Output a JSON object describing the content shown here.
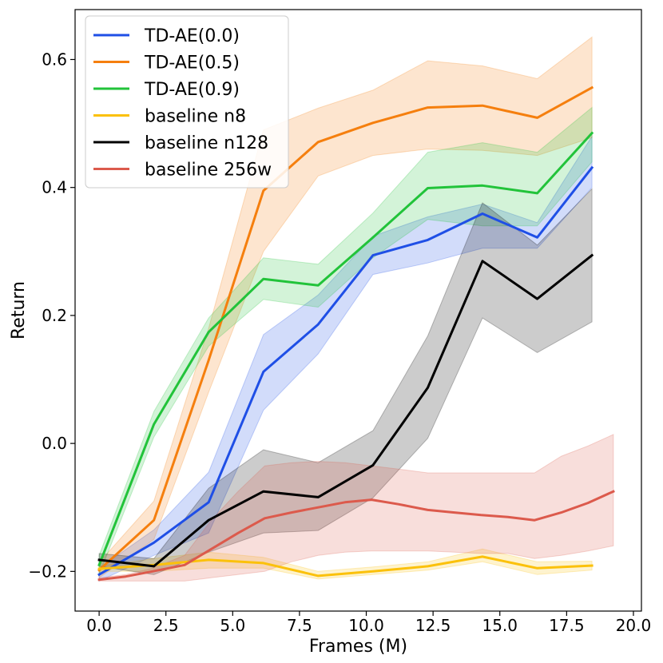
{
  "chart_data": {
    "type": "line",
    "title": "",
    "xlabel": "Frames (M)",
    "ylabel": "Return",
    "xlim": [
      -0.9,
      20.3
    ],
    "ylim": [
      -0.262,
      0.678
    ],
    "xticks": [
      0.0,
      2.5,
      5.0,
      7.5,
      10.0,
      12.5,
      15.0,
      17.5,
      20.0
    ],
    "xtick_labels": [
      "0.0",
      "2.5",
      "5.0",
      "7.5",
      "10.0",
      "12.5",
      "15.0",
      "17.5",
      "20.0"
    ],
    "yticks": [
      -0.2,
      0.0,
      0.2,
      0.4,
      0.6
    ],
    "ytick_labels": [
      "−0.2",
      "0.0",
      "0.2",
      "0.4",
      "0.6"
    ],
    "grid": false,
    "legend_position": "top-left",
    "series": [
      {
        "name": "TD-AE(0.0)",
        "color": "#1f4fe6",
        "x": [
          0.0,
          2.05,
          4.1,
          6.15,
          8.2,
          10.25,
          12.3,
          14.35,
          16.4,
          18.45
        ],
        "y": [
          -0.205,
          -0.155,
          -0.092,
          0.112,
          0.186,
          0.294,
          0.318,
          0.359,
          0.322,
          0.431
        ],
        "lower": [
          -0.215,
          -0.175,
          -0.14,
          0.052,
          0.14,
          0.264,
          0.282,
          0.305,
          0.305,
          0.4
        ],
        "upper": [
          -0.195,
          -0.135,
          -0.045,
          0.17,
          0.232,
          0.324,
          0.354,
          0.374,
          0.345,
          0.48
        ]
      },
      {
        "name": "TD-AE(0.5)",
        "color": "#f57f0e",
        "x": [
          0.0,
          2.05,
          4.1,
          6.15,
          8.2,
          10.25,
          12.3,
          14.35,
          16.4,
          18.45
        ],
        "y": [
          -0.198,
          -0.12,
          0.13,
          0.395,
          0.471,
          0.501,
          0.525,
          0.528,
          0.509,
          0.556
        ],
        "lower": [
          -0.21,
          -0.15,
          0.08,
          0.3,
          0.418,
          0.45,
          0.46,
          0.458,
          0.45,
          0.478
        ],
        "upper": [
          -0.186,
          -0.09,
          0.18,
          0.49,
          0.524,
          0.552,
          0.598,
          0.59,
          0.57,
          0.635
        ]
      },
      {
        "name": "TD-AE(0.9)",
        "color": "#22c33a",
        "x": [
          0.0,
          2.05,
          4.1,
          6.15,
          8.2,
          10.25,
          12.3,
          14.35,
          16.4,
          18.45
        ],
        "y": [
          -0.19,
          0.03,
          0.174,
          0.257,
          0.247,
          0.322,
          0.399,
          0.403,
          0.391,
          0.485
        ],
        "lower": [
          -0.205,
          0.01,
          0.152,
          0.225,
          0.213,
          0.29,
          0.35,
          0.34,
          0.34,
          0.44
        ],
        "upper": [
          -0.175,
          0.05,
          0.196,
          0.29,
          0.28,
          0.36,
          0.455,
          0.47,
          0.455,
          0.525
        ]
      },
      {
        "name": "baseline n8",
        "color": "#fbc10b",
        "x": [
          0.0,
          2.05,
          4.1,
          6.15,
          8.2,
          10.25,
          12.3,
          14.35,
          16.4,
          18.45
        ],
        "y": [
          -0.196,
          -0.19,
          -0.182,
          -0.187,
          -0.207,
          -0.2,
          -0.192,
          -0.177,
          -0.195,
          -0.191
        ],
        "lower": [
          -0.2,
          -0.2,
          -0.195,
          -0.195,
          -0.212,
          -0.205,
          -0.198,
          -0.185,
          -0.205,
          -0.198
        ],
        "upper": [
          -0.192,
          -0.18,
          -0.17,
          -0.178,
          -0.2,
          -0.193,
          -0.185,
          -0.165,
          -0.185,
          -0.184
        ]
      },
      {
        "name": "baseline n128",
        "color": "#000000",
        "x": [
          0.0,
          2.05,
          4.1,
          6.15,
          8.2,
          10.25,
          12.3,
          14.35,
          16.4,
          18.45
        ],
        "y": [
          -0.182,
          -0.192,
          -0.12,
          -0.075,
          -0.084,
          -0.034,
          0.087,
          0.285,
          0.226,
          0.294
        ],
        "lower": [
          -0.192,
          -0.205,
          -0.17,
          -0.14,
          -0.136,
          -0.085,
          0.008,
          0.196,
          0.142,
          0.19
        ],
        "upper": [
          -0.172,
          -0.18,
          -0.07,
          -0.01,
          -0.03,
          0.02,
          0.168,
          0.376,
          0.31,
          0.398
        ]
      },
      {
        "name": "baseline 256w",
        "color": "#dc5a4c",
        "x": [
          0.0,
          1.0,
          2.0,
          3.2,
          4.2,
          5.2,
          6.2,
          7.2,
          8.2,
          9.2,
          10.2,
          11.2,
          12.3,
          13.3,
          14.3,
          15.3,
          16.3,
          17.3,
          18.3,
          19.25
        ],
        "y": [
          -0.213,
          -0.208,
          -0.2,
          -0.19,
          -0.165,
          -0.14,
          -0.117,
          -0.108,
          -0.1,
          -0.092,
          -0.088,
          -0.095,
          -0.104,
          -0.108,
          -0.112,
          -0.115,
          -0.12,
          -0.108,
          -0.093,
          -0.075
        ],
        "lower": [
          -0.215,
          -0.215,
          -0.215,
          -0.215,
          -0.21,
          -0.205,
          -0.2,
          -0.185,
          -0.175,
          -0.17,
          -0.168,
          -0.168,
          -0.168,
          -0.17,
          -0.172,
          -0.172,
          -0.18,
          -0.175,
          -0.168,
          -0.16
        ],
        "upper": [
          -0.21,
          -0.205,
          -0.195,
          -0.175,
          -0.12,
          -0.075,
          -0.035,
          -0.03,
          -0.028,
          -0.03,
          -0.035,
          -0.04,
          -0.046,
          -0.046,
          -0.046,
          -0.046,
          -0.046,
          -0.02,
          -0.004,
          0.014
        ]
      }
    ]
  }
}
